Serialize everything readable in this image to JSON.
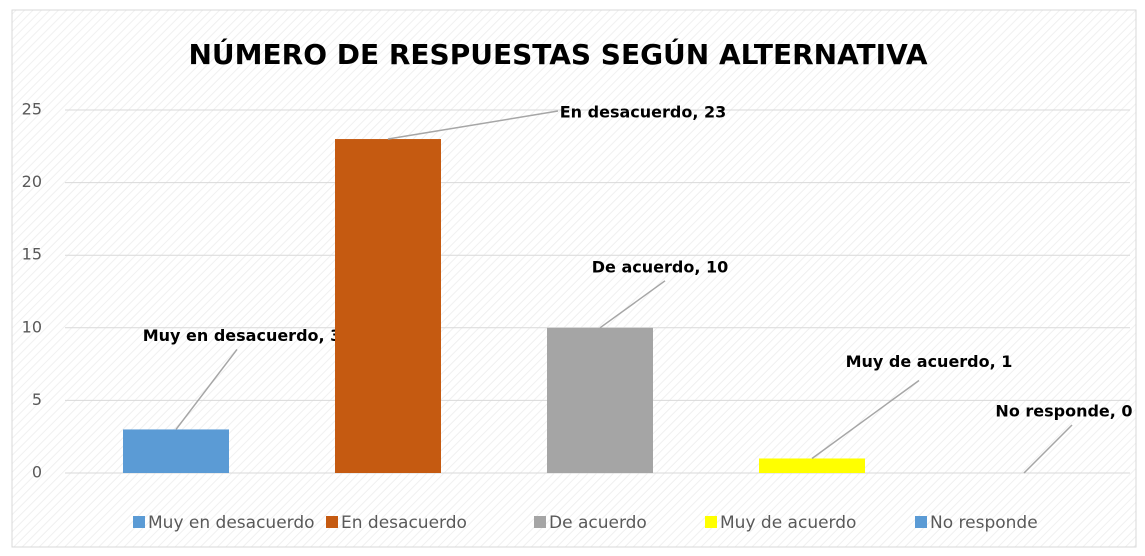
{
  "chart_data": {
    "type": "bar",
    "title": "NÚMERO DE RESPUESTAS SEGÚN ALTERNATIVA",
    "categories": [
      "Muy en desacuerdo",
      "En desacuerdo",
      "De acuerdo",
      "Muy de acuerdo",
      "No responde"
    ],
    "values": [
      3,
      23,
      10,
      1,
      0
    ],
    "value_labels": [
      "Muy en desacuerdo, 3",
      "En desacuerdo, 23",
      "De acuerdo, 10",
      "Muy de acuerdo, 1",
      "No responde, 0"
    ],
    "colors": [
      "#5b9bd5",
      "#c55a11",
      "#a5a5a5",
      "#ffff00",
      "#5b9bd5"
    ],
    "ylim": [
      0,
      25
    ],
    "yticks": [
      0,
      5,
      10,
      15,
      20,
      25
    ],
    "grid": true,
    "legend": "bottom"
  }
}
